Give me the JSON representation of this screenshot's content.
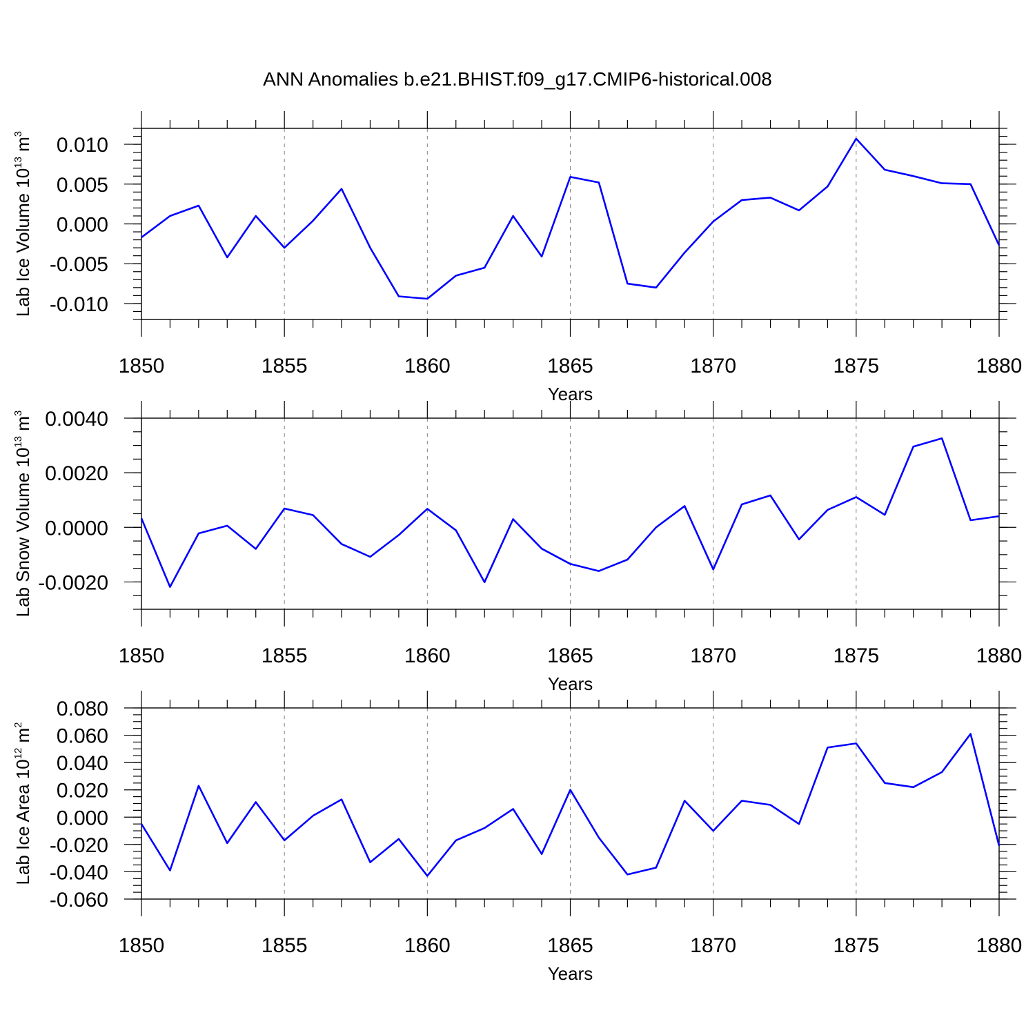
{
  "figure": {
    "title": "ANN Anomalies b.e21.BHIST.f09_g17.CMIP6-historical.008"
  },
  "chart_data": [
    {
      "type": "line",
      "title": "ANN Anomalies b.e21.BHIST.f09_g17.CMIP6-historical.008",
      "xlabel": "Years",
      "ylabel_text": "Lab Ice Volume 10",
      "ylabel_exp": "13",
      "ylabel_unit": "m",
      "ylabel_unit_exp": "3",
      "xlim": [
        1850,
        1880
      ],
      "ylim": [
        -0.012,
        0.012
      ],
      "x_ticks": [
        1850,
        1855,
        1860,
        1865,
        1870,
        1875,
        1880
      ],
      "y_ticks": [
        -0.01,
        -0.005,
        0.0,
        0.005,
        0.01
      ],
      "y_tick_labels": [
        "-0.010",
        "-0.005",
        "0.000",
        "0.005",
        "0.010"
      ],
      "y_minor_step": 0.001,
      "grid": "vertical dashed at major x ticks",
      "color": "#0000ff",
      "x": [
        1850,
        1851,
        1852,
        1853,
        1854,
        1855,
        1856,
        1857,
        1858,
        1859,
        1860,
        1861,
        1862,
        1863,
        1864,
        1865,
        1866,
        1867,
        1868,
        1869,
        1870,
        1871,
        1872,
        1873,
        1874,
        1875,
        1876,
        1877,
        1878,
        1879,
        1880
      ],
      "values": [
        -0.0017,
        0.001,
        0.0023,
        -0.0042,
        0.001,
        -0.003,
        0.0004,
        0.0044,
        -0.003,
        -0.0091,
        -0.0094,
        -0.0065,
        -0.0055,
        0.001,
        -0.0041,
        0.0059,
        0.0052,
        -0.0075,
        -0.008,
        -0.0036,
        0.0003,
        0.003,
        0.0033,
        0.0017,
        0.0047,
        0.0107,
        0.0068,
        0.006,
        0.0051,
        0.005,
        -0.0027
      ]
    },
    {
      "type": "line",
      "xlabel": "Years",
      "ylabel_text": "Lab Snow Volume 10",
      "ylabel_exp": "13",
      "ylabel_unit": "m",
      "ylabel_unit_exp": "3",
      "xlim": [
        1850,
        1880
      ],
      "ylim": [
        -0.003,
        0.004
      ],
      "x_ticks": [
        1850,
        1855,
        1860,
        1865,
        1870,
        1875,
        1880
      ],
      "y_ticks": [
        -0.002,
        0.0,
        0.002,
        0.004
      ],
      "y_tick_labels": [
        "-0.0020",
        "0.0000",
        "0.0020",
        "0.0040"
      ],
      "y_minor_step": 0.0005,
      "grid": "vertical dashed at major x ticks",
      "color": "#0000ff",
      "x": [
        1850,
        1851,
        1852,
        1853,
        1854,
        1855,
        1856,
        1857,
        1858,
        1859,
        1860,
        1861,
        1862,
        1863,
        1864,
        1865,
        1866,
        1867,
        1868,
        1869,
        1870,
        1871,
        1872,
        1873,
        1874,
        1875,
        1876,
        1877,
        1878,
        1879,
        1880
      ],
      "values": [
        0.00033,
        -0.00218,
        -0.00022,
        6e-05,
        -0.00079,
        0.00069,
        0.00045,
        -0.00061,
        -0.00108,
        -0.00028,
        0.00068,
        -0.00011,
        -0.00201,
        0.0003,
        -0.00078,
        -0.00134,
        -0.0016,
        -0.00118,
        0.0,
        0.00078,
        -0.00154,
        0.00084,
        0.00117,
        -0.00044,
        0.00064,
        0.00111,
        0.00046,
        0.00296,
        0.00326,
        0.00026,
        0.00041
      ]
    },
    {
      "type": "line",
      "xlabel": "Years",
      "ylabel_text": "Lab Ice Area 10",
      "ylabel_exp": "12",
      "ylabel_unit": "m",
      "ylabel_unit_exp": "2",
      "xlim": [
        1850,
        1880
      ],
      "ylim": [
        -0.06,
        0.08
      ],
      "x_ticks": [
        1850,
        1855,
        1860,
        1865,
        1870,
        1875,
        1880
      ],
      "y_ticks": [
        -0.06,
        -0.04,
        -0.02,
        0.0,
        0.02,
        0.04,
        0.06,
        0.08
      ],
      "y_tick_labels": [
        "-0.060",
        "-0.040",
        "-0.020",
        "0.000",
        "0.020",
        "0.040",
        "0.060",
        "0.080"
      ],
      "y_minor_step": 0.005,
      "grid": "vertical dashed at major x ticks",
      "color": "#0000ff",
      "x": [
        1850,
        1851,
        1852,
        1853,
        1854,
        1855,
        1856,
        1857,
        1858,
        1859,
        1860,
        1861,
        1862,
        1863,
        1864,
        1865,
        1866,
        1867,
        1868,
        1869,
        1870,
        1871,
        1872,
        1873,
        1874,
        1875,
        1876,
        1877,
        1878,
        1879,
        1880
      ],
      "values": [
        -0.005,
        -0.039,
        0.023,
        -0.019,
        0.011,
        -0.017,
        0.001,
        0.013,
        -0.033,
        -0.016,
        -0.043,
        -0.017,
        -0.008,
        0.006,
        -0.027,
        0.02,
        -0.015,
        -0.042,
        -0.037,
        0.012,
        -0.01,
        0.012,
        0.009,
        -0.005,
        0.051,
        0.054,
        0.025,
        0.022,
        0.033,
        0.061,
        -0.021
      ]
    }
  ]
}
